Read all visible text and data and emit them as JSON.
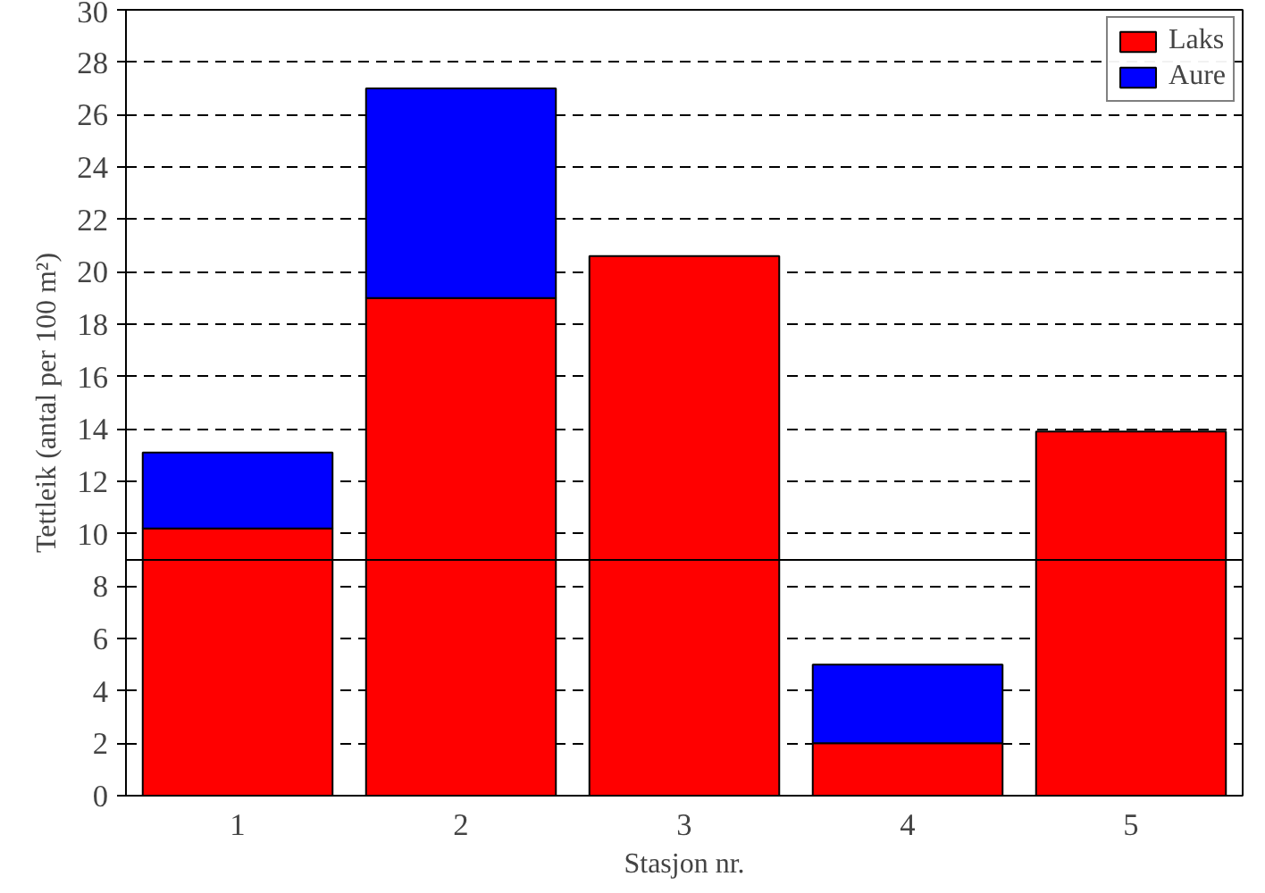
{
  "chart_data": {
    "type": "bar",
    "stacked": true,
    "xlabel": "Stasjon nr.",
    "ylabel": "Tettleik (antal per 100 m²)",
    "categories": [
      "1",
      "2",
      "3",
      "4",
      "5"
    ],
    "series": [
      {
        "name": "Laks",
        "color": "#ff0000",
        "values": [
          10.2,
          19,
          20.6,
          2,
          13.9
        ]
      },
      {
        "name": "Aure",
        "color": "#0000ff",
        "values": [
          2.9,
          8,
          null,
          3,
          null
        ]
      }
    ],
    "ylim": [
      0,
      30
    ],
    "yticks": [
      0,
      2,
      4,
      6,
      8,
      10,
      12,
      14,
      16,
      18,
      20,
      22,
      24,
      26,
      28,
      30
    ],
    "ref_lines": [
      {
        "axis": "y",
        "value": 9,
        "color": "#000000",
        "line_style": "solid"
      }
    ],
    "grid": "y",
    "legend": "top right"
  }
}
